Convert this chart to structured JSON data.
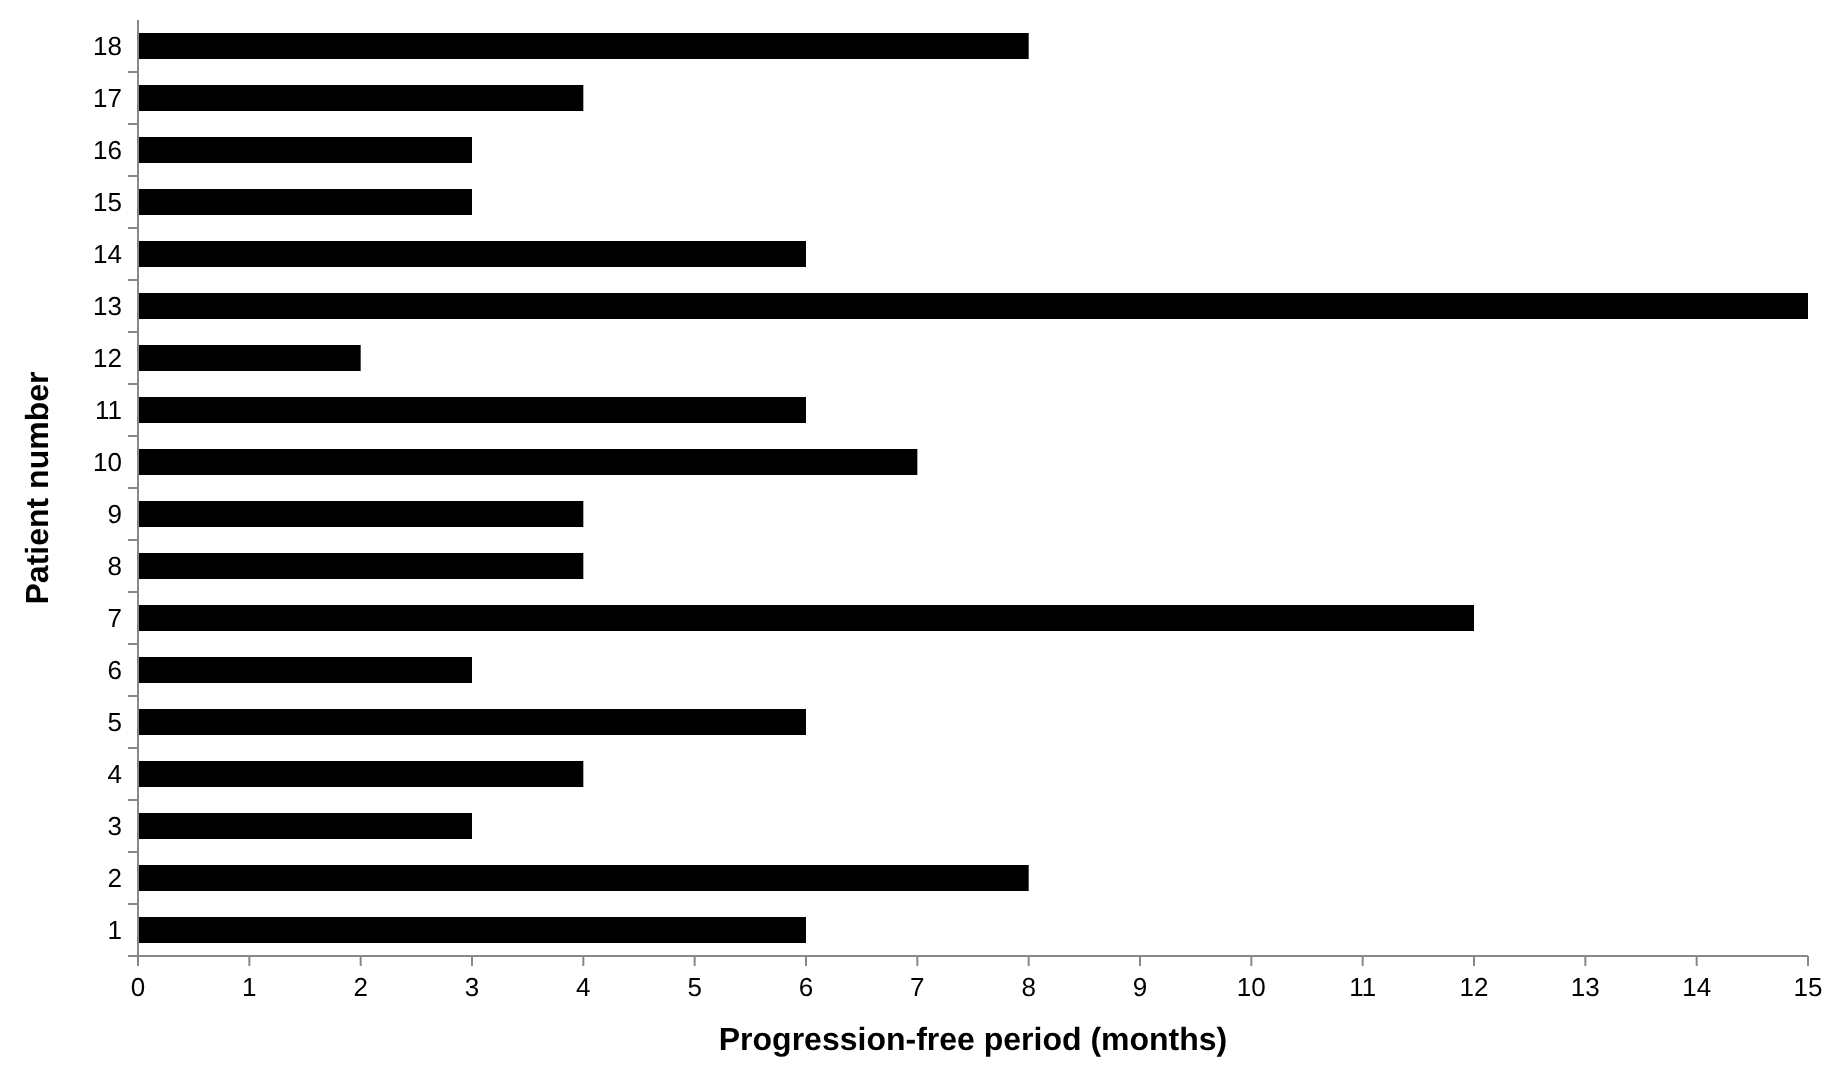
{
  "chart_data": {
    "type": "bar",
    "orientation": "horizontal",
    "xlabel": "Progression-free period (months)",
    "ylabel": "Patient number",
    "categories": [
      "18",
      "17",
      "16",
      "15",
      "14",
      "13",
      "12",
      "11",
      "10",
      "9",
      "8",
      "7",
      "6",
      "5",
      "4",
      "3",
      "2",
      "1"
    ],
    "values": [
      8,
      4,
      3,
      3,
      6,
      15,
      2,
      6,
      7,
      4,
      4,
      12,
      3,
      6,
      4,
      3,
      8,
      6
    ],
    "color": "#000000",
    "xlim": [
      0,
      15
    ],
    "xticks": [
      0,
      1,
      2,
      3,
      4,
      5,
      6,
      7,
      8,
      9,
      10,
      11,
      12,
      13,
      14,
      15
    ],
    "grid": false
  }
}
